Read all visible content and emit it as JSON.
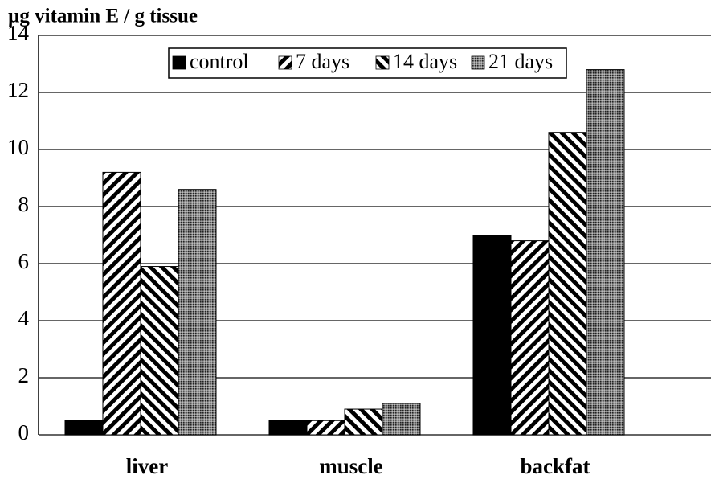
{
  "chart_data": {
    "type": "bar",
    "title": "µg vitamin E / g tissue",
    "categories": [
      "liver",
      "muscle",
      "backfat"
    ],
    "series": [
      {
        "name": "control",
        "color": "#000000",
        "pattern": "solid",
        "values": [
          0.5,
          0.5,
          7.0
        ]
      },
      {
        "name": "7 days",
        "color": "#000000",
        "pattern": "backslash",
        "values": [
          9.2,
          0.5,
          6.8
        ]
      },
      {
        "name": "14 days",
        "color": "#000000",
        "pattern": "slash",
        "values": [
          5.9,
          0.9,
          10.6
        ]
      },
      {
        "name": "21 days",
        "color": "#555555",
        "pattern": "dots",
        "values": [
          8.6,
          1.1,
          12.8
        ]
      }
    ],
    "ylim": [
      0,
      14
    ],
    "yticks": [
      0,
      2,
      4,
      6,
      8,
      10,
      12,
      14
    ],
    "grid": true
  }
}
